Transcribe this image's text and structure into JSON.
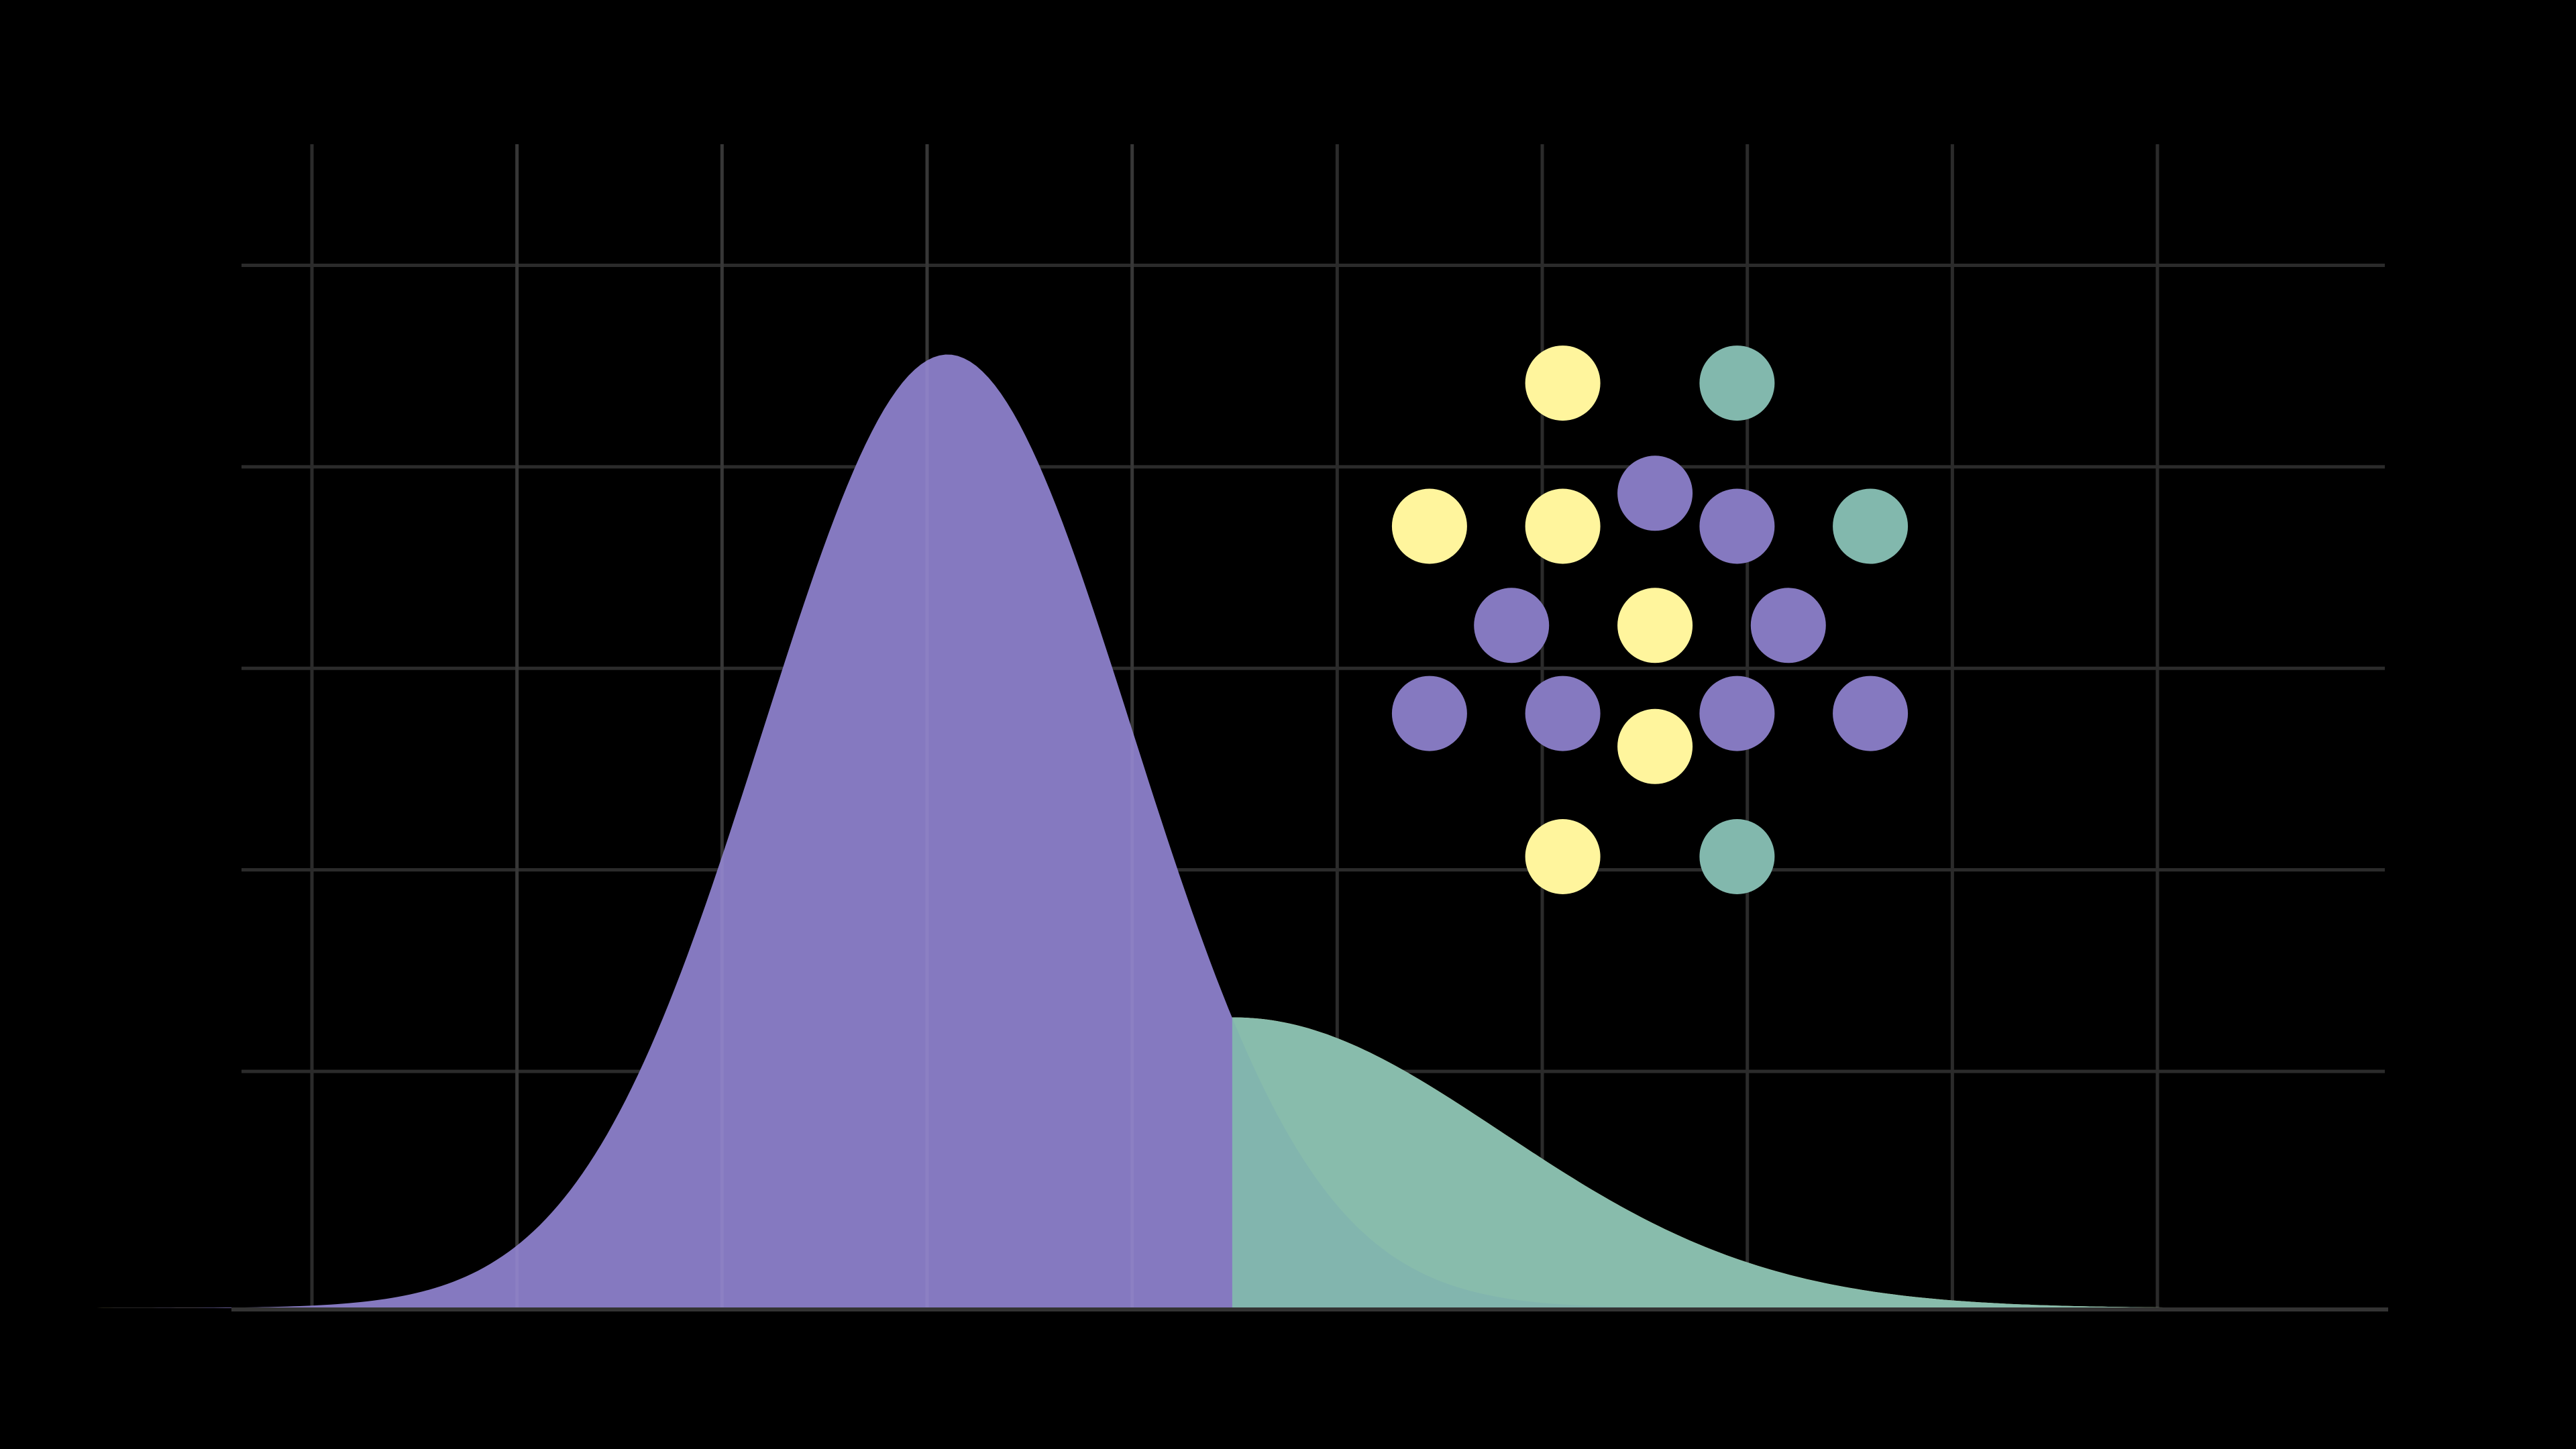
{
  "chart_data": {
    "type": "area",
    "title": "",
    "xlabel": "",
    "ylabel": "",
    "grid": true,
    "xlim": [
      0,
      9.7
    ],
    "ylim": [
      0,
      5.3
    ],
    "series": [
      {
        "mean": 3.1,
        "sd": 0.9,
        "peak": 4.33,
        "color": "#8579c0",
        "opacity": 1.0
      },
      {
        "mean": 4.5,
        "sd": 1.3,
        "peak": 1.32,
        "color": "#fff59d",
        "opacity": 1.0
      },
      {
        "mean": 4.5,
        "sd": 1.3,
        "peak": 1.32,
        "color": "#82b8ad",
        "opacity": 0.95
      }
    ],
    "dot_colors": {
      "purple": "#8579c0",
      "yellow": "#fff59d",
      "teal": "#82b8ad"
    },
    "dots": [
      {
        "x": 6.1,
        "y": 4.2,
        "color": "yellow"
      },
      {
        "x": 6.95,
        "y": 4.2,
        "color": "teal"
      },
      {
        "x": 5.45,
        "y": 3.55,
        "color": "yellow"
      },
      {
        "x": 6.1,
        "y": 3.55,
        "color": "yellow"
      },
      {
        "x": 6.55,
        "y": 3.7,
        "color": "purple"
      },
      {
        "x": 6.95,
        "y": 3.55,
        "color": "purple"
      },
      {
        "x": 7.6,
        "y": 3.55,
        "color": "teal"
      },
      {
        "x": 5.85,
        "y": 3.1,
        "color": "purple"
      },
      {
        "x": 6.55,
        "y": 3.1,
        "color": "yellow"
      },
      {
        "x": 7.2,
        "y": 3.1,
        "color": "purple"
      },
      {
        "x": 5.45,
        "y": 2.7,
        "color": "purple"
      },
      {
        "x": 6.1,
        "y": 2.7,
        "color": "purple"
      },
      {
        "x": 6.55,
        "y": 2.55,
        "color": "yellow"
      },
      {
        "x": 6.95,
        "y": 2.7,
        "color": "purple"
      },
      {
        "x": 7.6,
        "y": 2.7,
        "color": "purple"
      },
      {
        "x": 6.1,
        "y": 2.05,
        "color": "yellow"
      },
      {
        "x": 6.95,
        "y": 2.05,
        "color": "teal"
      }
    ]
  }
}
